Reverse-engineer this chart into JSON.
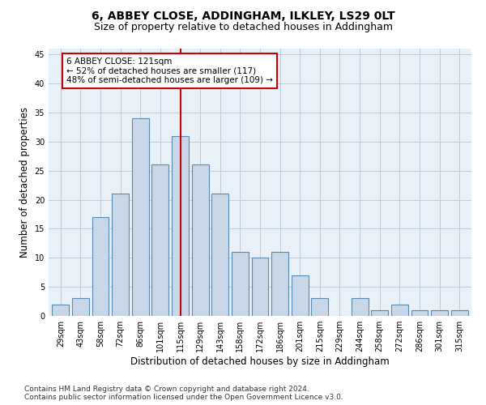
{
  "title": "6, ABBEY CLOSE, ADDINGHAM, ILKLEY, LS29 0LT",
  "subtitle": "Size of property relative to detached houses in Addingham",
  "xlabel": "Distribution of detached houses by size in Addingham",
  "ylabel": "Number of detached properties",
  "categories": [
    "29sqm",
    "43sqm",
    "58sqm",
    "72sqm",
    "86sqm",
    "101sqm",
    "115sqm",
    "129sqm",
    "143sqm",
    "158sqm",
    "172sqm",
    "186sqm",
    "201sqm",
    "215sqm",
    "229sqm",
    "244sqm",
    "258sqm",
    "272sqm",
    "286sqm",
    "301sqm",
    "315sqm"
  ],
  "values": [
    2,
    3,
    17,
    21,
    34,
    26,
    31,
    26,
    21,
    11,
    10,
    11,
    7,
    3,
    0,
    3,
    1,
    2,
    1,
    1,
    1
  ],
  "bar_color": "#c8d8e8",
  "bar_edge_color": "#5a8ab0",
  "vline_x": 6.0,
  "vline_color": "#cc0000",
  "annotation_text": "6 ABBEY CLOSE: 121sqm\n← 52% of detached houses are smaller (117)\n48% of semi-detached houses are larger (109) →",
  "annotation_box_color": "#ffffff",
  "annotation_box_edge": "#cc0000",
  "ylim": [
    0,
    46
  ],
  "yticks": [
    0,
    5,
    10,
    15,
    20,
    25,
    30,
    35,
    40,
    45
  ],
  "grid_color": "#c0ccd8",
  "bg_color": "#e8f0f8",
  "footer1": "Contains HM Land Registry data © Crown copyright and database right 2024.",
  "footer2": "Contains public sector information licensed under the Open Government Licence v3.0.",
  "title_fontsize": 10,
  "subtitle_fontsize": 9,
  "xlabel_fontsize": 8.5,
  "ylabel_fontsize": 8.5,
  "tick_fontsize": 7,
  "footer_fontsize": 6.5,
  "ann_fontsize": 7.5
}
